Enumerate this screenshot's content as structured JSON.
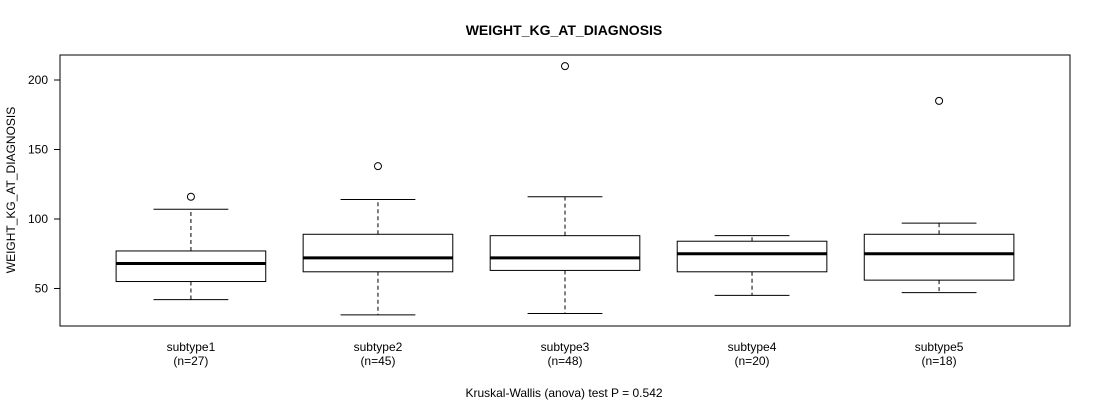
{
  "chart_data": {
    "type": "box",
    "title": "WEIGHT_KG_AT_DIAGNOSIS",
    "ylabel": "WEIGHT_KG_AT_DIAGNOSIS",
    "xlabel": "Kruskal-Wallis (anova) test P = 0.542",
    "ylim": [
      23,
      218
    ],
    "yticks": [
      50,
      100,
      150,
      200
    ],
    "yticklabels": [
      "50",
      "100",
      "150",
      "200"
    ],
    "groups": [
      {
        "name": "subtype1",
        "n_label": "(n=27)",
        "whisker_low": 42,
        "q1": 55,
        "median": 68,
        "q3": 77,
        "whisker_high": 107,
        "outliers": [
          116
        ]
      },
      {
        "name": "subtype2",
        "n_label": "(n=45)",
        "whisker_low": 31,
        "q1": 62,
        "median": 72,
        "q3": 89,
        "whisker_high": 114,
        "outliers": [
          138
        ]
      },
      {
        "name": "subtype3",
        "n_label": "(n=48)",
        "whisker_low": 32,
        "q1": 63,
        "median": 72,
        "q3": 88,
        "whisker_high": 116,
        "outliers": [
          210
        ]
      },
      {
        "name": "subtype4",
        "n_label": "(n=20)",
        "whisker_low": 45,
        "q1": 62,
        "median": 75,
        "q3": 84,
        "whisker_high": 88,
        "outliers": []
      },
      {
        "name": "subtype5",
        "n_label": "(n=18)",
        "whisker_low": 47,
        "q1": 56,
        "median": 75,
        "q3": 89,
        "whisker_high": 97,
        "outliers": [
          185
        ]
      }
    ]
  }
}
